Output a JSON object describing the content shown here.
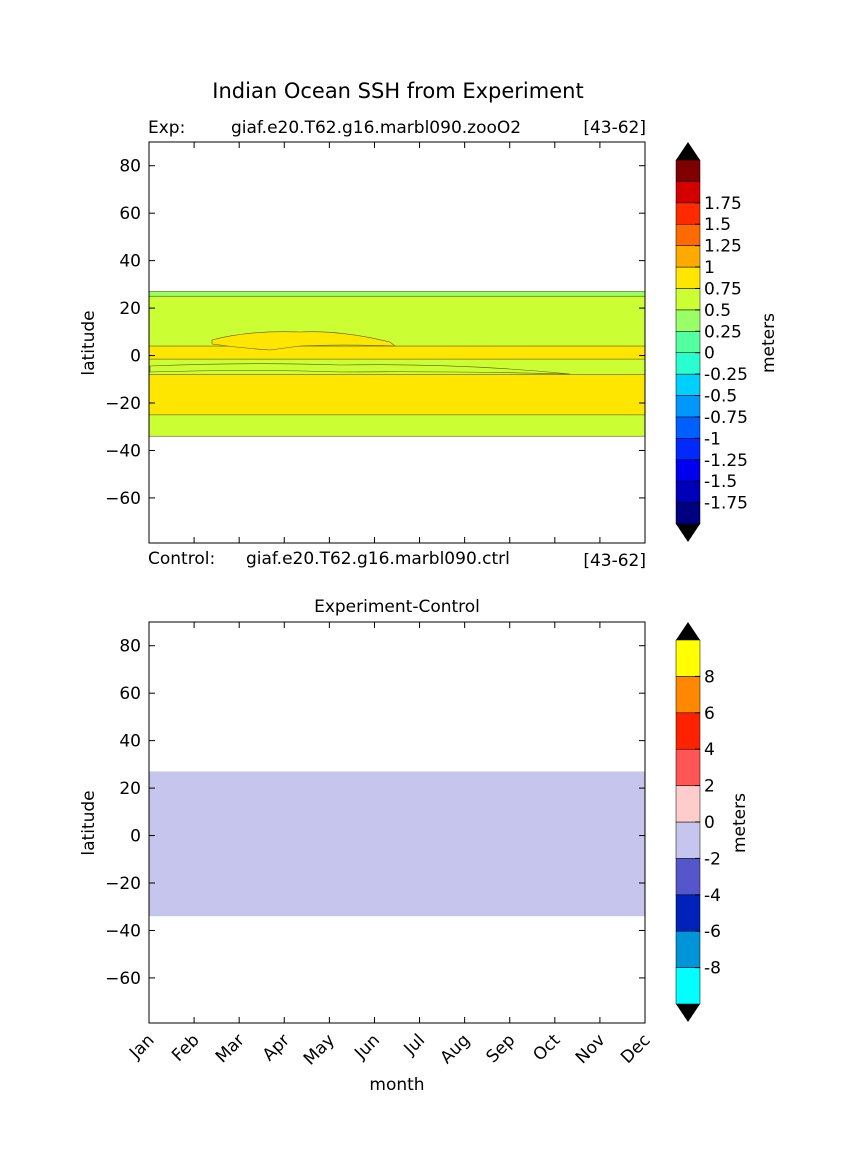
{
  "title": "Indian Ocean SSH from Experiment",
  "top_panel": {
    "exp_label": "Exp:",
    "exp_name": "giaf.e20.T62.g16.marbl090.zooO2",
    "exp_years": "[43-62]",
    "ylabel": "latitude",
    "colorbar_label": "meters"
  },
  "control_row": {
    "label": "Control:",
    "name": "giaf.e20.T62.g16.marbl090.ctrl",
    "years": "[43-62]"
  },
  "bottom_panel": {
    "title": "Experiment-Control",
    "ylabel": "latitude",
    "xlabel": "month",
    "colorbar_label": "meters"
  },
  "chart_data": [
    {
      "type": "heatmap",
      "subtype": "filled-contour",
      "xlabel": "",
      "ylabel": "latitude",
      "x_categories": [
        "Jan",
        "Feb",
        "Mar",
        "Apr",
        "May",
        "Jun",
        "Jul",
        "Aug",
        "Sep",
        "Oct",
        "Nov",
        "Dec"
      ],
      "xlim": [
        0,
        11
      ],
      "ylim": [
        -79,
        90
      ],
      "yticks": [
        80,
        60,
        40,
        20,
        0,
        -20,
        -40,
        -60
      ],
      "ytick_labels": [
        "80",
        "60",
        "40",
        "20",
        "0",
        "−20",
        "−40",
        "−60"
      ],
      "data_lat_range": [
        -34,
        27
      ],
      "bands": [
        {
          "color": "#ccff33",
          "level": "0.25 to 0.5",
          "lat_min": -34,
          "lat_max": 25
        },
        {
          "color": "#99ff66",
          "level": "0 to 0.25",
          "lat_min": 25,
          "lat_max": 27
        },
        {
          "color": "#ffe600",
          "level": "0.5 to 0.75",
          "lat_min": -25,
          "lat_max": -8
        },
        {
          "color": "#ffe600",
          "level": "0.5 to 0.75",
          "lat_min": -1.5,
          "lat_max": 4
        }
      ],
      "colorbar": {
        "label": "meters",
        "extend": "both",
        "colors": [
          "#000080",
          "#0000b8",
          "#0000f0",
          "#0028ff",
          "#0060ff",
          "#0098ff",
          "#00d0ff",
          "#29ffce",
          "#54ff9f",
          "#99ff66",
          "#ccff33",
          "#ffe600",
          "#ffaa00",
          "#ff6a00",
          "#ff2a00",
          "#d40000",
          "#800000"
        ],
        "tick_labels": [
          "-1.75",
          "-1.5",
          "-1.25",
          "-1",
          "-0.75",
          "-0.5",
          "-0.25",
          "0",
          "0.25",
          "0.5",
          "0.75",
          "1",
          "1.25",
          "1.5",
          "1.75"
        ]
      }
    },
    {
      "type": "heatmap",
      "subtype": "filled-contour",
      "title": "Experiment-Control",
      "xlabel": "month",
      "ylabel": "latitude",
      "x_categories": [
        "Jan",
        "Feb",
        "Mar",
        "Apr",
        "May",
        "Jun",
        "Jul",
        "Aug",
        "Sep",
        "Oct",
        "Nov",
        "Dec"
      ],
      "xlim": [
        0,
        11
      ],
      "ylim": [
        -79,
        90
      ],
      "yticks": [
        80,
        60,
        40,
        20,
        0,
        -20,
        -40,
        -60
      ],
      "ytick_labels": [
        "80",
        "60",
        "40",
        "20",
        "0",
        "−20",
        "−40",
        "−60"
      ],
      "bands": [
        {
          "color": "#c5c5ed",
          "level": "-2 to 0",
          "lat_min": -34,
          "lat_max": 27
        }
      ],
      "colorbar": {
        "label": "meters",
        "extend": "both",
        "colors": [
          "#00ffff",
          "#0094d8",
          "#0022bb",
          "#5555cc",
          "#c5c5ed",
          "#ffcccc",
          "#ff5555",
          "#ff2200",
          "#ff8800",
          "#ffff00"
        ],
        "tick_labels": [
          "-8",
          "-6",
          "-4",
          "-2",
          "0",
          "2",
          "4",
          "6",
          "8"
        ]
      }
    }
  ]
}
